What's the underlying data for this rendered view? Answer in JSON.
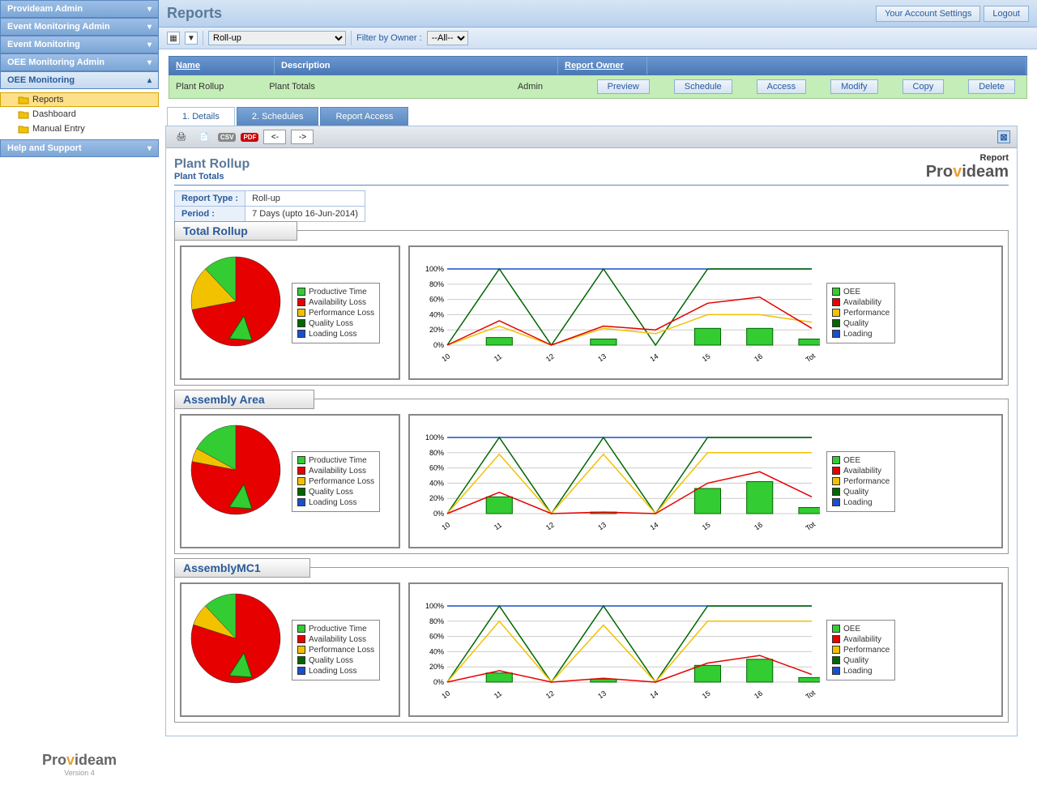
{
  "header": {
    "title": "Reports",
    "account_btn": "Your Account Settings",
    "logout_btn": "Logout"
  },
  "sidebar": {
    "panels": [
      {
        "label": "Provideam Admin",
        "expanded": false
      },
      {
        "label": "Event Monitoring Admin",
        "expanded": false
      },
      {
        "label": "Event Monitoring",
        "expanded": false
      },
      {
        "label": "OEE Monitoring Admin",
        "expanded": false
      },
      {
        "label": "OEE Monitoring",
        "expanded": true
      },
      {
        "label": "Help and Support",
        "expanded": false
      }
    ],
    "tree": [
      {
        "label": "Reports",
        "selected": true
      },
      {
        "label": "Dashboard",
        "selected": false
      },
      {
        "label": "Manual Entry",
        "selected": false
      }
    ],
    "footer_brand": "Provideam",
    "footer_ver": "Version 4"
  },
  "toolbar": {
    "select_type": "Roll-up",
    "filter_label": "Filter by Owner :",
    "filter_value": "--All--"
  },
  "grid": {
    "cols": {
      "name": "Name",
      "desc": "Description",
      "owner": "Report Owner"
    },
    "row": {
      "name": "Plant Rollup",
      "desc": "Plant Totals",
      "owner": "Admin"
    },
    "btns": {
      "preview": "Preview",
      "schedule": "Schedule",
      "access": "Access",
      "modify": "Modify",
      "copy": "Copy",
      "delete": "Delete"
    }
  },
  "tabs": {
    "t1": "1. Details",
    "t2": "2. Schedules",
    "t3": "Report Access"
  },
  "report": {
    "title": "Plant Rollup",
    "subtitle": "Plant Totals",
    "logo_label": "Report",
    "brand": "Provideam",
    "meta": {
      "k1": "Report Type :",
      "v1": "Roll-up",
      "k2": "Period :",
      "v2": "7 Days (upto 16-Jun-2014)"
    }
  },
  "pie_legend": [
    {
      "label": "Productive Time",
      "color": "#33cc33"
    },
    {
      "label": "Availability Loss",
      "color": "#e60000"
    },
    {
      "label": "Performance Loss",
      "color": "#f2c200"
    },
    {
      "label": "Quality Loss",
      "color": "#006600"
    },
    {
      "label": "Loading Loss",
      "color": "#1a4fcc"
    }
  ],
  "line_legend": [
    {
      "label": "OEE",
      "color": "#33cc33"
    },
    {
      "label": "Availability",
      "color": "#e60000"
    },
    {
      "label": "Performance",
      "color": "#f2c200"
    },
    {
      "label": "Quality",
      "color": "#006600"
    },
    {
      "label": "Loading",
      "color": "#1a4fcc"
    }
  ],
  "chart_common": {
    "type": "combo-line-bar",
    "xlabels": [
      "10",
      "11",
      "12",
      "13",
      "14",
      "15",
      "16",
      "Tot"
    ],
    "ylim": [
      0,
      100
    ],
    "ytick_step": 20,
    "ylabels": [
      "0%",
      "20%",
      "40%",
      "60%",
      "80%",
      "100%"
    ],
    "bar_color": "#33cc33",
    "grid_color": "#cccccc",
    "background_color": "#ffffff"
  },
  "sections": [
    {
      "title": "Total Rollup",
      "pie": {
        "type": "pie",
        "slices": [
          {
            "label": "Availability Loss",
            "value": 72,
            "color": "#e60000"
          },
          {
            "label": "Performance Loss",
            "value": 16,
            "color": "#f2c200"
          },
          {
            "label": "Productive Time",
            "value": 12,
            "color": "#33cc33"
          }
        ]
      },
      "lines": {
        "bars": [
          0,
          10,
          0,
          8,
          0,
          22,
          22,
          8
        ],
        "oee": [
          0,
          10,
          0,
          8,
          0,
          22,
          22,
          8
        ],
        "availability": [
          0,
          32,
          0,
          25,
          20,
          55,
          63,
          22
        ],
        "performance": [
          0,
          25,
          0,
          22,
          15,
          40,
          40,
          30
        ],
        "quality": [
          0,
          100,
          0,
          100,
          0,
          100,
          100,
          100
        ],
        "loading": [
          100,
          100,
          100,
          100,
          100,
          100,
          100,
          100
        ]
      }
    },
    {
      "title": "Assembly Area",
      "pie": {
        "type": "pie",
        "slices": [
          {
            "label": "Availability Loss",
            "value": 78,
            "color": "#e60000"
          },
          {
            "label": "Performance Loss",
            "value": 5,
            "color": "#f2c200"
          },
          {
            "label": "Productive Time",
            "value": 17,
            "color": "#33cc33"
          }
        ]
      },
      "lines": {
        "bars": [
          0,
          22,
          0,
          2,
          0,
          33,
          42,
          8
        ],
        "oee": [
          0,
          22,
          0,
          2,
          0,
          33,
          42,
          8
        ],
        "availability": [
          0,
          28,
          0,
          2,
          0,
          40,
          55,
          22
        ],
        "performance": [
          0,
          78,
          0,
          78,
          0,
          80,
          80,
          80
        ],
        "quality": [
          0,
          100,
          0,
          100,
          0,
          100,
          100,
          100
        ],
        "loading": [
          100,
          100,
          100,
          100,
          100,
          100,
          100,
          100
        ]
      }
    },
    {
      "title": "AssemblyMC1",
      "pie": {
        "type": "pie",
        "slices": [
          {
            "label": "Availability Loss",
            "value": 80,
            "color": "#e60000"
          },
          {
            "label": "Performance Loss",
            "value": 8,
            "color": "#f2c200"
          },
          {
            "label": "Productive Time",
            "value": 12,
            "color": "#33cc33"
          }
        ]
      },
      "lines": {
        "bars": [
          0,
          12,
          0,
          4,
          0,
          22,
          30,
          6
        ],
        "oee": [
          0,
          12,
          0,
          4,
          0,
          22,
          30,
          6
        ],
        "availability": [
          0,
          15,
          0,
          5,
          0,
          25,
          35,
          10
        ],
        "performance": [
          0,
          80,
          0,
          75,
          0,
          80,
          80,
          80
        ],
        "quality": [
          0,
          100,
          0,
          100,
          0,
          100,
          100,
          100
        ],
        "loading": [
          100,
          100,
          100,
          100,
          100,
          100,
          100,
          100
        ]
      }
    }
  ]
}
